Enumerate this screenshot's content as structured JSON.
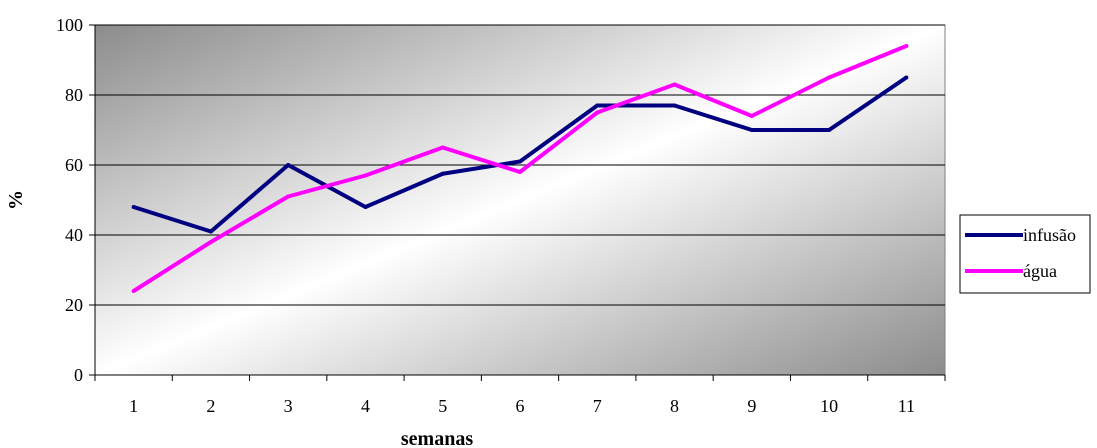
{
  "chart_data": {
    "type": "line",
    "title": "",
    "xlabel": "semanas",
    "ylabel": "%",
    "categories": [
      "1",
      "2",
      "3",
      "4",
      "5",
      "6",
      "7",
      "8",
      "9",
      "10",
      "11"
    ],
    "ylim": [
      0,
      100
    ],
    "yticks": [
      "0",
      "20",
      "40",
      "60",
      "80",
      "100"
    ],
    "grid": true,
    "legend_position": "right",
    "series": [
      {
        "name": "infusão",
        "color": "#000080",
        "values": [
          48,
          41,
          60,
          48,
          57.5,
          61,
          77,
          77,
          70,
          70,
          85
        ]
      },
      {
        "name": "água",
        "color": "#ff00ff",
        "values": [
          24,
          38,
          51,
          57,
          65,
          58,
          75,
          83,
          74,
          85,
          94
        ]
      }
    ]
  }
}
